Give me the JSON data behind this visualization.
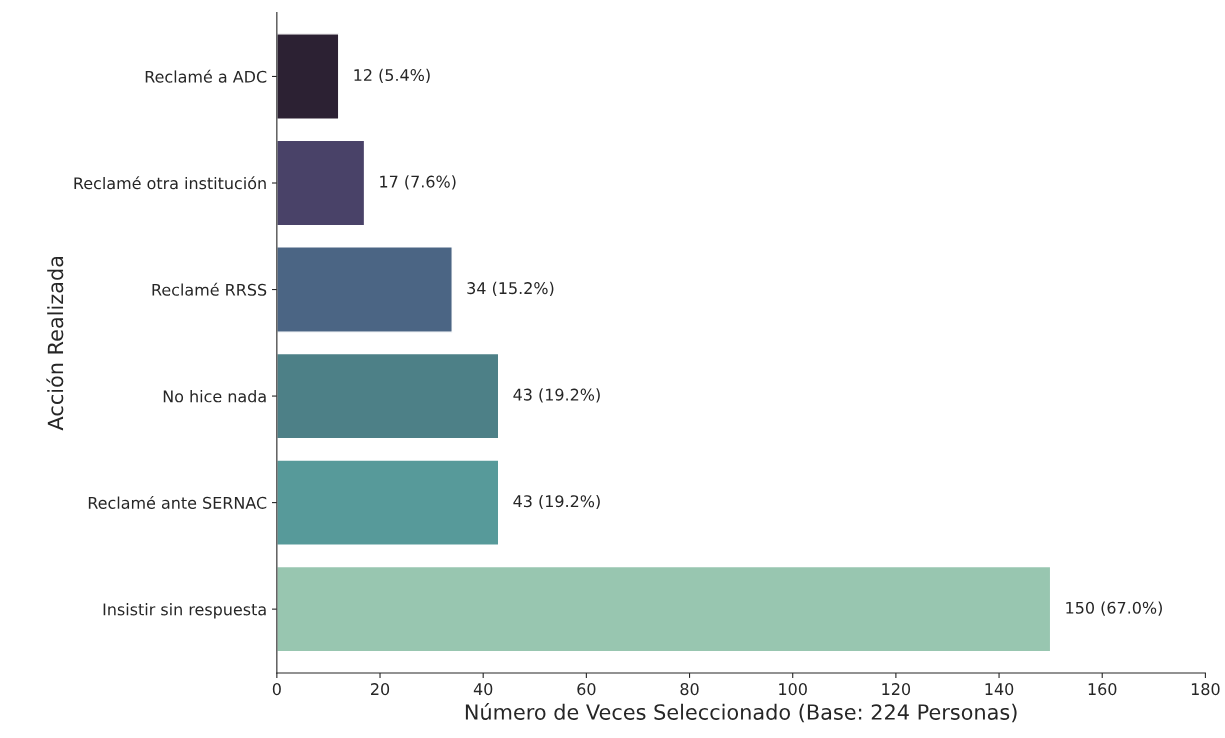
{
  "chart_data": {
    "type": "bar",
    "orientation": "horizontal",
    "xlabel": "Número de Veces Seleccionado (Base: 224 Personas)",
    "ylabel": "Acción Realizada",
    "categories": [
      "Reclamé a ADC",
      "Reclamé otra institución",
      "Reclamé RRSS",
      "No hice nada",
      "Reclamé ante SERNAC",
      "Insistir sin respuesta"
    ],
    "values": [
      12,
      17,
      34,
      43,
      43,
      150
    ],
    "colors": [
      "#2d1e36",
      "#453c6e",
      "#41648e",
      "#438791",
      "#4ca5a5",
      "#91cdb0"
    ],
    "value_labels": [
      "12 (5.4%)",
      "17 (7.6%)",
      "34 (15.2%)",
      "43 (19.2%)",
      "43 (19.2%)",
      "150 (67.0%)"
    ],
    "xlim": [
      0,
      180
    ],
    "xticks": [
      0,
      20,
      40,
      60,
      80,
      100,
      120,
      140,
      160,
      180
    ],
    "grid": false,
    "legend": false
  }
}
